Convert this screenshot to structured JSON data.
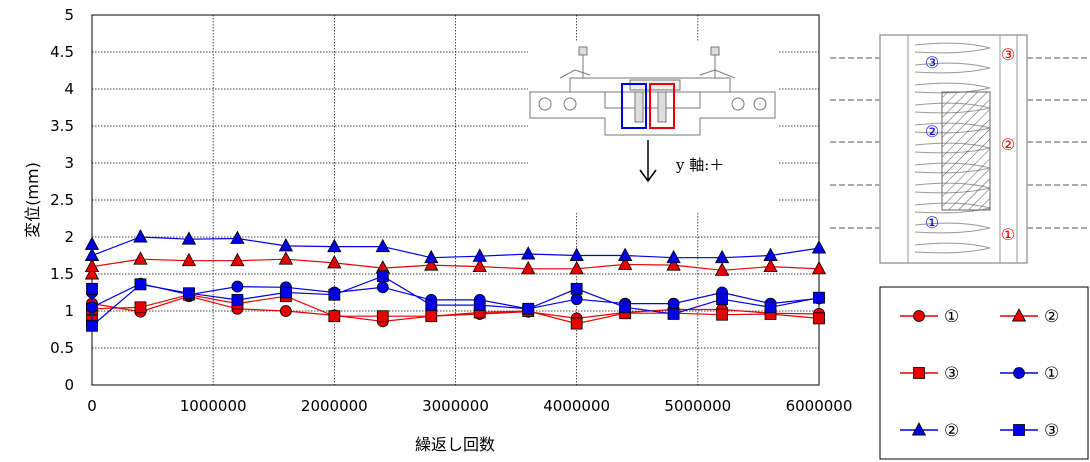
{
  "chart_data": {
    "type": "line",
    "xlabel": "繰返し回数",
    "ylabel": "変位(mm)",
    "xlim": [
      0,
      6000000
    ],
    "ylim": [
      0,
      5
    ],
    "x_ticks": [
      "0",
      "1000000",
      "2000000",
      "3000000",
      "4000000",
      "5000000",
      "6000000"
    ],
    "y_ticks": [
      "0",
      "0.5",
      "1",
      "1.5",
      "2",
      "2.5",
      "3",
      "3.5",
      "4",
      "4.5",
      "5"
    ],
    "grid": "dashed",
    "legend_position": "bottom-right",
    "x": [
      0,
      0,
      400000,
      800000,
      1200000,
      1600000,
      2000000,
      2400000,
      2800000,
      3200000,
      3600000,
      4000000,
      4400000,
      4800000,
      5200000,
      5600000,
      6000000
    ],
    "series": [
      {
        "name": "①",
        "color": "#e60000",
        "marker": "circle",
        "values": [
          1.02,
          1.1,
          0.99,
          1.2,
          1.03,
          1.0,
          0.94,
          0.86,
          0.93,
          0.96,
          0.99,
          0.9,
          0.98,
          1.02,
          1.02,
          0.97,
          0.96
        ]
      },
      {
        "name": "②",
        "color": "#e60000",
        "marker": "triangle",
        "values": [
          1.5,
          1.6,
          1.7,
          1.68,
          1.68,
          1.7,
          1.65,
          1.58,
          1.62,
          1.6,
          1.57,
          1.57,
          1.63,
          1.62,
          1.55,
          1.6,
          1.57
        ]
      },
      {
        "name": "③",
        "color": "#e60000",
        "marker": "square",
        "values": [
          0.87,
          1.03,
          1.05,
          1.22,
          1.1,
          1.2,
          0.93,
          0.93,
          0.93,
          0.98,
          1.0,
          0.83,
          0.97,
          0.97,
          0.95,
          0.96,
          0.9
        ]
      },
      {
        "name": "①",
        "color": "#0000e6",
        "marker": "circle",
        "values": [
          1.25,
          1.05,
          1.37,
          1.22,
          1.33,
          1.32,
          1.25,
          1.32,
          1.15,
          1.15,
          1.03,
          1.16,
          1.1,
          1.1,
          1.25,
          1.1,
          1.17
        ]
      },
      {
        "name": "②",
        "color": "#0000e6",
        "marker": "triangle",
        "values": [
          1.9,
          1.75,
          2.0,
          1.97,
          1.98,
          1.88,
          1.87,
          1.87,
          1.72,
          1.74,
          1.77,
          1.75,
          1.75,
          1.72,
          1.72,
          1.75,
          1.85
        ]
      },
      {
        "name": "③",
        "color": "#0000e6",
        "marker": "square",
        "values": [
          1.3,
          0.8,
          1.36,
          1.24,
          1.15,
          1.25,
          1.22,
          1.47,
          1.08,
          1.08,
          1.03,
          1.3,
          1.05,
          0.96,
          1.16,
          1.05,
          1.18
        ]
      }
    ]
  },
  "inset": {
    "axis_label": "y 軸:＋"
  },
  "ref_diagram": {
    "left_markers": [
      "③",
      "②",
      "①"
    ],
    "right_markers": [
      "③",
      "②",
      "①"
    ],
    "left_color": "#0000e6",
    "right_color": "#e60000"
  }
}
